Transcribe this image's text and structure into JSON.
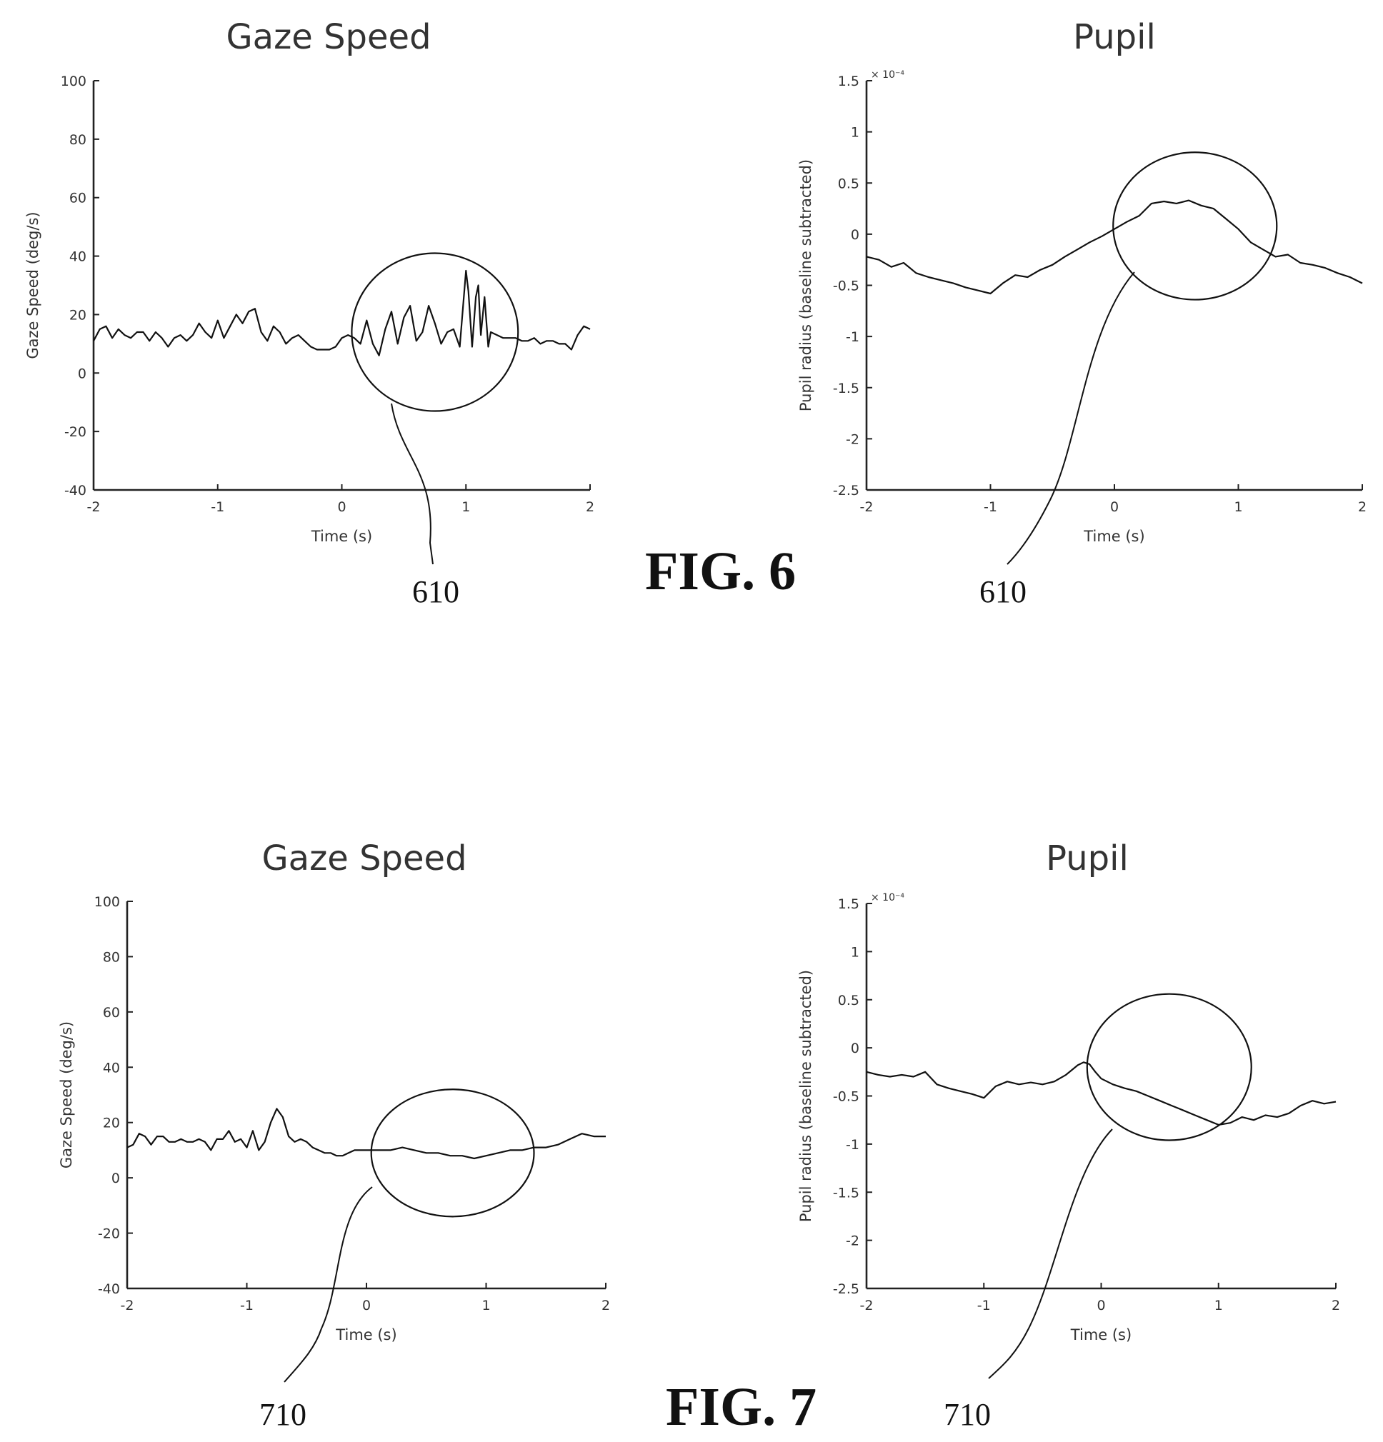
{
  "figures": [
    {
      "label": "FIG. 6",
      "callout": "610"
    },
    {
      "label": "FIG. 7",
      "callout": "710"
    }
  ],
  "chart_data": [
    {
      "figure": "FIG. 6",
      "type": "line",
      "title": "Gaze Speed",
      "xlabel": "Time (s)",
      "ylabel": "Gaze Speed (deg/s)",
      "xlim": [
        -2,
        2
      ],
      "ylim": [
        -40,
        100
      ],
      "xticks": [
        "-2",
        "-1",
        "0",
        "1",
        "2"
      ],
      "yticks": [
        "-40",
        "-20",
        "0",
        "20",
        "40",
        "60",
        "80",
        "100"
      ],
      "multiplier": "",
      "callout": "610",
      "highlight": {
        "cx": 0.75,
        "cy": 14,
        "rx_data": 0.67,
        "ry_data": 27
      },
      "series": [
        {
          "x": [
            -2,
            -1.95,
            -1.9,
            -1.85,
            -1.8,
            -1.75,
            -1.7,
            -1.65,
            -1.6,
            -1.55,
            -1.5,
            -1.45,
            -1.4,
            -1.35,
            -1.3,
            -1.25,
            -1.2,
            -1.15,
            -1.1,
            -1.05,
            -1,
            -0.95,
            -0.9,
            -0.85,
            -0.8,
            -0.75,
            -0.7,
            -0.65,
            -0.6,
            -0.55,
            -0.5,
            -0.45,
            -0.4,
            -0.35,
            -0.3,
            -0.25,
            -0.2,
            -0.15,
            -0.1,
            -0.05,
            0,
            0.05,
            0.1,
            0.15,
            0.2,
            0.25,
            0.3,
            0.35,
            0.4,
            0.45,
            0.5,
            0.55,
            0.6,
            0.65,
            0.7,
            0.75,
            0.8,
            0.85,
            0.9,
            0.95,
            1,
            1.02,
            1.05,
            1.08,
            1.1,
            1.12,
            1.15,
            1.18,
            1.2,
            1.25,
            1.3,
            1.35,
            1.4,
            1.45,
            1.5,
            1.55,
            1.6,
            1.65,
            1.7,
            1.75,
            1.8,
            1.85,
            1.9,
            1.95,
            2
          ],
          "y": [
            11,
            15,
            16,
            12,
            15,
            13,
            12,
            14,
            14,
            11,
            14,
            12,
            9,
            12,
            13,
            11,
            13,
            17,
            14,
            12,
            18,
            12,
            16,
            20,
            17,
            21,
            22,
            14,
            11,
            16,
            14,
            10,
            12,
            13,
            11,
            9,
            8,
            8,
            8,
            9,
            12,
            13,
            12,
            10,
            18,
            10,
            6,
            15,
            21,
            10,
            19,
            23,
            11,
            14,
            23,
            17,
            10,
            14,
            15,
            9,
            35,
            28,
            9,
            26,
            30,
            13,
            26,
            9,
            14,
            13,
            12,
            12,
            12,
            11,
            11,
            12,
            10,
            11,
            11,
            10,
            10,
            8,
            13,
            16,
            15
          ]
        }
      ]
    },
    {
      "figure": "FIG. 6",
      "type": "line",
      "title": "Pupil",
      "xlabel": "Time (s)",
      "ylabel": "Pupil radius (baseline subtracted)",
      "xlim": [
        -2,
        2
      ],
      "ylim": [
        -2.5,
        1.5
      ],
      "xticks": [
        "-2",
        "-1",
        "0",
        "1",
        "2"
      ],
      "yticks": [
        "-2.5",
        "-2",
        "-1.5",
        "-1",
        "-0.5",
        "0",
        "0.5",
        "1",
        "1.5"
      ],
      "multiplier": "× 10⁻⁴",
      "callout": "610",
      "highlight": {
        "cx": 0.65,
        "cy": 0.08,
        "rx_data": 0.66,
        "ry_data": 0.72
      },
      "series": [
        {
          "x": [
            -2,
            -1.9,
            -1.8,
            -1.7,
            -1.6,
            -1.5,
            -1.4,
            -1.3,
            -1.2,
            -1.1,
            -1,
            -0.9,
            -0.8,
            -0.7,
            -0.6,
            -0.5,
            -0.4,
            -0.3,
            -0.2,
            -0.1,
            0,
            0.1,
            0.2,
            0.3,
            0.4,
            0.5,
            0.6,
            0.7,
            0.8,
            0.9,
            1,
            1.1,
            1.2,
            1.3,
            1.4,
            1.5,
            1.6,
            1.7,
            1.8,
            1.9,
            2
          ],
          "y": [
            -0.22,
            -0.25,
            -0.32,
            -0.28,
            -0.38,
            -0.42,
            -0.45,
            -0.48,
            -0.52,
            -0.55,
            -0.58,
            -0.48,
            -0.4,
            -0.42,
            -0.35,
            -0.3,
            -0.22,
            -0.15,
            -0.08,
            -0.02,
            0.05,
            0.12,
            0.18,
            0.3,
            0.32,
            0.3,
            0.33,
            0.28,
            0.25,
            0.15,
            0.05,
            -0.08,
            -0.15,
            -0.22,
            -0.2,
            -0.28,
            -0.3,
            -0.33,
            -0.38,
            -0.42,
            -0.48
          ]
        }
      ]
    },
    {
      "figure": "FIG. 7",
      "type": "line",
      "title": "Gaze Speed",
      "xlabel": "Time (s)",
      "ylabel": "Gaze Speed (deg/s)",
      "xlim": [
        -2,
        2
      ],
      "ylim": [
        -40,
        100
      ],
      "xticks": [
        "-2",
        "-1",
        "0",
        "1",
        "2"
      ],
      "yticks": [
        "-40",
        "-20",
        "0",
        "20",
        "40",
        "60",
        "80",
        "100"
      ],
      "multiplier": "",
      "callout": "710",
      "highlight": {
        "cx": 0.72,
        "cy": 9,
        "rx_data": 0.68,
        "ry_data": 23
      },
      "series": [
        {
          "x": [
            -2,
            -1.95,
            -1.9,
            -1.85,
            -1.8,
            -1.75,
            -1.7,
            -1.65,
            -1.6,
            -1.55,
            -1.5,
            -1.45,
            -1.4,
            -1.35,
            -1.3,
            -1.25,
            -1.2,
            -1.15,
            -1.1,
            -1.05,
            -1,
            -0.95,
            -0.9,
            -0.85,
            -0.8,
            -0.75,
            -0.7,
            -0.65,
            -0.6,
            -0.55,
            -0.5,
            -0.45,
            -0.4,
            -0.35,
            -0.3,
            -0.25,
            -0.2,
            -0.15,
            -0.1,
            -0.05,
            0,
            0.1,
            0.2,
            0.3,
            0.4,
            0.5,
            0.6,
            0.7,
            0.8,
            0.9,
            1,
            1.1,
            1.2,
            1.3,
            1.4,
            1.5,
            1.6,
            1.7,
            1.8,
            1.9,
            2
          ],
          "y": [
            11,
            12,
            16,
            15,
            12,
            15,
            15,
            13,
            13,
            14,
            13,
            13,
            14,
            13,
            10,
            14,
            14,
            17,
            13,
            14,
            11,
            17,
            10,
            13,
            20,
            25,
            22,
            15,
            13,
            14,
            13,
            11,
            10,
            9,
            9,
            8,
            8,
            9,
            10,
            10,
            10,
            10,
            10,
            11,
            10,
            9,
            9,
            8,
            8,
            7,
            8,
            9,
            10,
            10,
            11,
            11,
            12,
            14,
            16,
            15,
            15
          ]
        }
      ]
    },
    {
      "figure": "FIG. 7",
      "type": "line",
      "title": "Pupil",
      "xlabel": "Time (s)",
      "ylabel": "Pupil radius (baseline subtracted)",
      "xlim": [
        -2,
        2
      ],
      "ylim": [
        -2.5,
        1.5
      ],
      "xticks": [
        "-2",
        "-1",
        "0",
        "1",
        "2"
      ],
      "yticks": [
        "-2.5",
        "-2",
        "-1.5",
        "-1",
        "-0.5",
        "0",
        "0.5",
        "1",
        "1.5"
      ],
      "multiplier": "× 10⁻⁴",
      "callout": "710",
      "highlight": {
        "cx": 0.58,
        "cy": -0.2,
        "rx_data": 0.7,
        "ry_data": 0.76
      },
      "series": [
        {
          "x": [
            -2,
            -1.9,
            -1.8,
            -1.7,
            -1.6,
            -1.5,
            -1.4,
            -1.3,
            -1.2,
            -1.1,
            -1,
            -0.9,
            -0.8,
            -0.7,
            -0.6,
            -0.5,
            -0.4,
            -0.3,
            -0.2,
            -0.15,
            -0.1,
            -0.05,
            0,
            0.1,
            0.2,
            0.3,
            0.4,
            0.5,
            0.6,
            0.7,
            0.8,
            0.9,
            1,
            1.1,
            1.2,
            1.3,
            1.4,
            1.5,
            1.6,
            1.7,
            1.8,
            1.9,
            2
          ],
          "y": [
            -0.25,
            -0.28,
            -0.3,
            -0.28,
            -0.3,
            -0.25,
            -0.38,
            -0.42,
            -0.45,
            -0.48,
            -0.52,
            -0.4,
            -0.35,
            -0.38,
            -0.36,
            -0.38,
            -0.35,
            -0.28,
            -0.18,
            -0.15,
            -0.17,
            -0.25,
            -0.32,
            -0.38,
            -0.42,
            -0.45,
            -0.5,
            -0.55,
            -0.6,
            -0.65,
            -0.7,
            -0.75,
            -0.8,
            -0.78,
            -0.72,
            -0.75,
            -0.7,
            -0.72,
            -0.68,
            -0.6,
            -0.55,
            -0.58,
            -0.56
          ]
        }
      ]
    }
  ]
}
